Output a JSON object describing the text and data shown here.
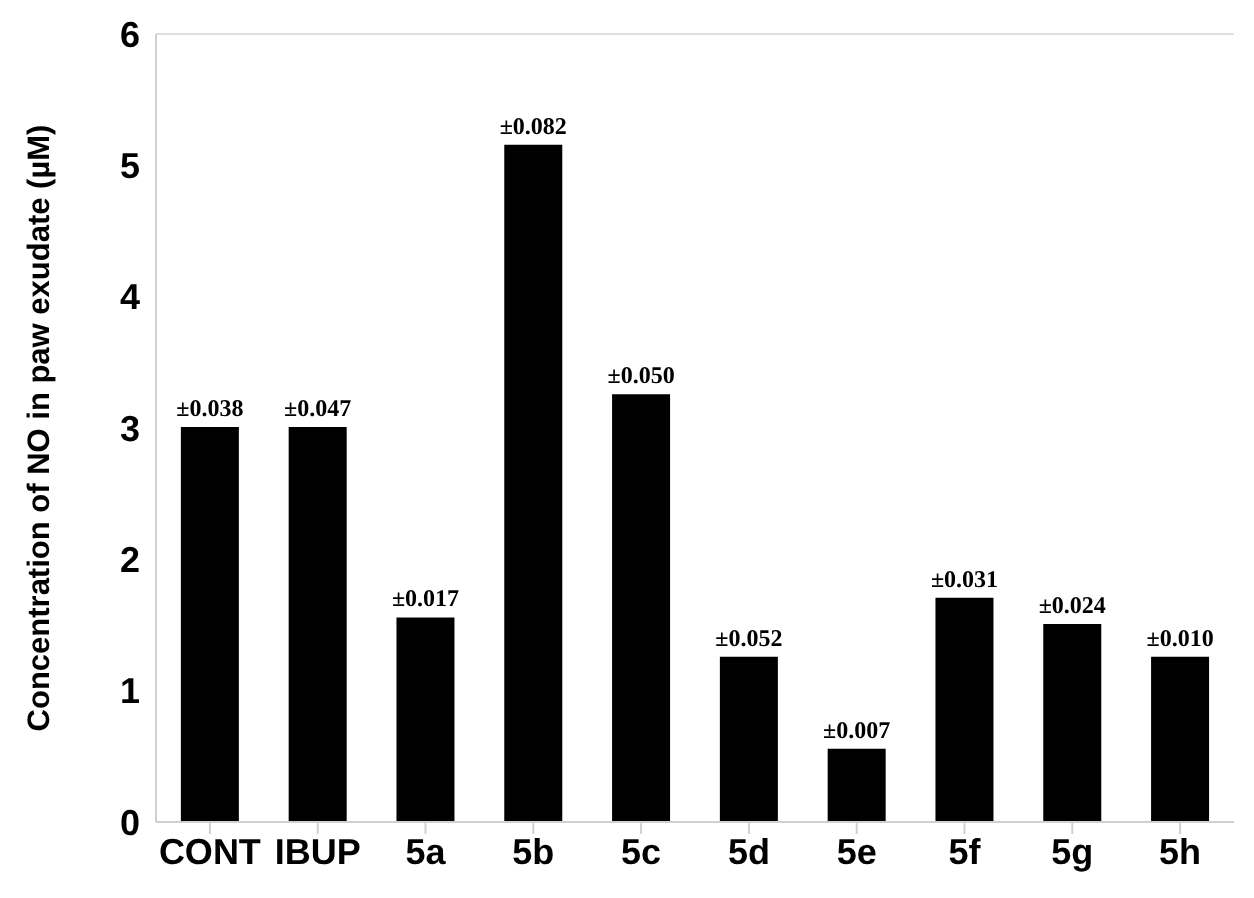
{
  "chart_data": {
    "type": "bar",
    "ylabel": "Concentration of NO in paw exudate (µM)",
    "categories": [
      "CONT",
      "IBUP",
      "5a",
      "5b",
      "5c",
      "5d",
      "5e",
      "5f",
      "5g",
      "5h"
    ],
    "values": [
      3.0,
      3.0,
      1.55,
      5.15,
      3.25,
      1.25,
      0.55,
      1.7,
      1.5,
      1.25
    ],
    "color": "#000000",
    "ylim": [
      0,
      6
    ],
    "yticks": [
      0,
      1,
      2,
      3,
      4,
      5,
      6
    ],
    "grid": false,
    "annotations": [
      {
        "text": "±0.038",
        "x": "CONT",
        "y": 3.0
      },
      {
        "text": "±0.047",
        "x": "IBUP",
        "y": 3.0
      },
      {
        "text": "±0.017",
        "x": "5a",
        "y": 1.55
      },
      {
        "text": "±0.082",
        "x": "5b",
        "y": 5.15
      },
      {
        "text": "±0.050",
        "x": "5c",
        "y": 3.25
      },
      {
        "text": "±0.052",
        "x": "5d",
        "y": 1.25
      },
      {
        "text": "±0.007",
        "x": "5e",
        "y": 0.55
      },
      {
        "text": "±0.031",
        "x": "5f",
        "y": 1.7
      },
      {
        "text": "±0.024",
        "x": "5g",
        "y": 1.5
      },
      {
        "text": "±0.010",
        "x": "5h",
        "y": 1.25
      }
    ]
  }
}
